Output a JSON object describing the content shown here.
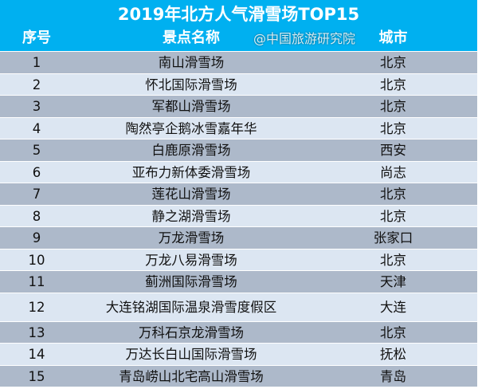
{
  "title": "2019年北方人气滑雪场TOP15",
  "headers": {
    "rank": "序号",
    "name": "景点名称",
    "city": "城市"
  },
  "rows": [
    {
      "rank": "1",
      "name": "南山滑雪场",
      "city": "北京"
    },
    {
      "rank": "2",
      "name": "怀北国际滑雪场",
      "city": "北京"
    },
    {
      "rank": "3",
      "name": "军都山滑雪场",
      "city": "北京"
    },
    {
      "rank": "4",
      "name": "陶然亭企鹅冰雪嘉年华",
      "city": "北京"
    },
    {
      "rank": "5",
      "name": "白鹿原滑雪场",
      "city": "西安"
    },
    {
      "rank": "6",
      "name": "亚布力新体委滑雪场",
      "city": "尚志"
    },
    {
      "rank": "7",
      "name": "莲花山滑雪场",
      "city": "北京"
    },
    {
      "rank": "8",
      "name": "静之湖滑雪场",
      "city": "北京"
    },
    {
      "rank": "9",
      "name": "万龙滑雪场",
      "city": "张家口"
    },
    {
      "rank": "10",
      "name": "万龙八易滑雪场",
      "city": "北京"
    },
    {
      "rank": "11",
      "name": "蓟洲国际滑雪场",
      "city": "天津"
    },
    {
      "rank": "12",
      "name": "大连铭湖国际温泉滑雪度假区",
      "city": "大连"
    },
    {
      "rank": "13",
      "name": "万科石京龙滑雪场",
      "city": "北京"
    },
    {
      "rank": "14",
      "name": "万达长白山国际滑雪场",
      "city": "抚松"
    },
    {
      "rank": "15",
      "name": "青岛崂山北宅高山滑雪场",
      "city": "青岛"
    }
  ],
  "watermark": "@中国旅游研究院",
  "colors": {
    "header": "#00b0f0",
    "row_odd": "#adb9ca",
    "row_even": "#dce6f2"
  }
}
